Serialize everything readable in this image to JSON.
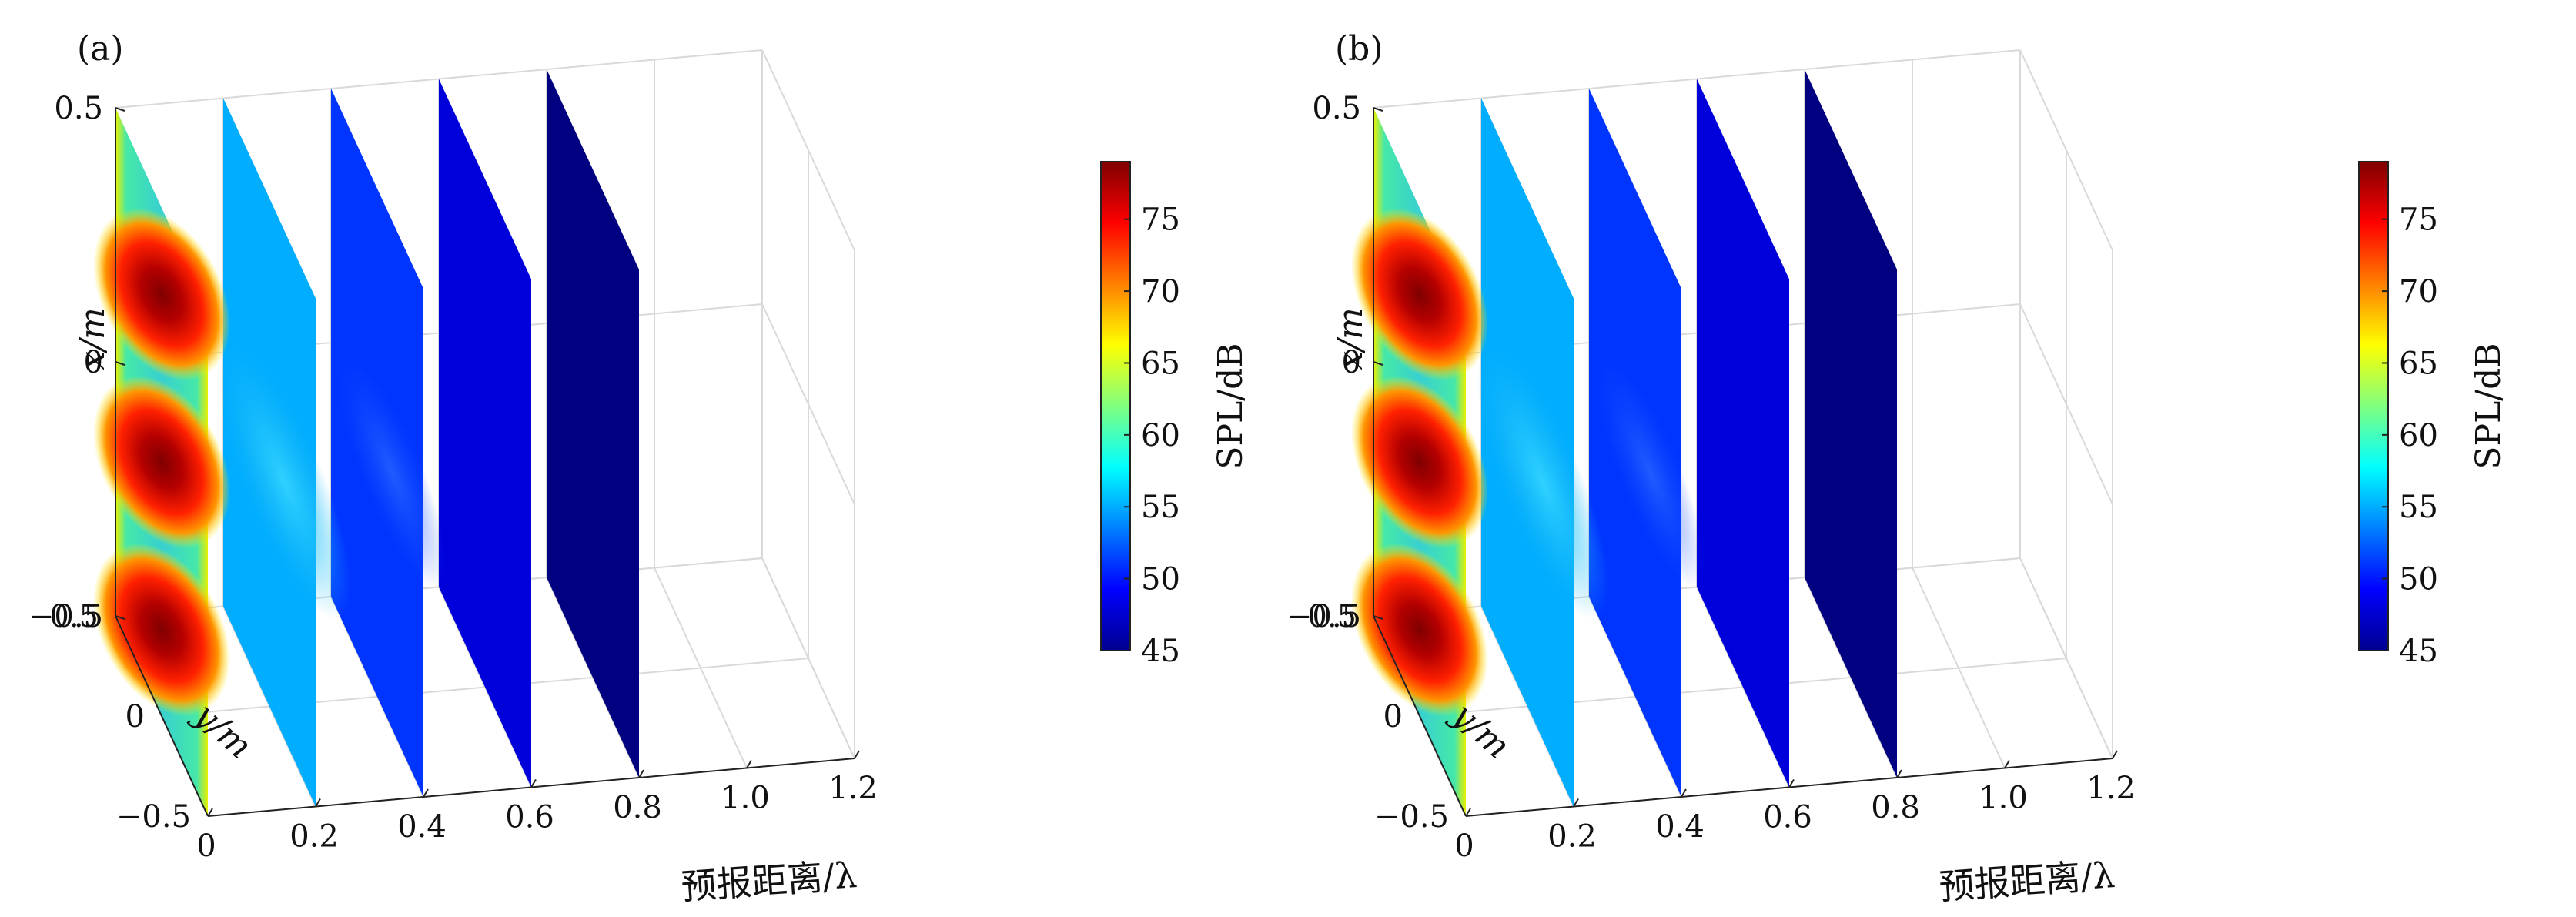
{
  "chart_data": [
    {
      "type": "3d-slice-heatmap",
      "panel_label": "(a)",
      "xlabel": "预报距离/λ",
      "ylabel": "y/m",
      "zlabel": "x/m",
      "x_ticks": [
        "0",
        "0.2",
        "0.4",
        "0.6",
        "0.8",
        "1.0",
        "1.2"
      ],
      "y_ticks": [
        "0.5",
        "0",
        "−0.5"
      ],
      "z_ticks": [
        "0.5",
        "0",
        "−0.5"
      ],
      "xlim": [
        0,
        1.2
      ],
      "ylim": [
        -0.5,
        0.5
      ],
      "zlim": [
        -0.5,
        0.5
      ],
      "slice_positions": [
        0,
        0.2,
        0.4,
        0.6,
        0.8
      ],
      "slice_mean_spl": [
        66,
        55,
        51,
        48,
        45
      ],
      "colorbar": {
        "label": "SPL/dB",
        "ticks": [
          "45",
          "50",
          "55",
          "60",
          "65",
          "70",
          "75"
        ],
        "range": [
          45,
          79
        ],
        "colormap": "jet"
      },
      "grid": true
    },
    {
      "type": "3d-slice-heatmap",
      "panel_label": "(b)",
      "xlabel": "预报距离/λ",
      "ylabel": "y/m",
      "zlabel": "x/m",
      "x_ticks": [
        "0",
        "0.2",
        "0.4",
        "0.6",
        "0.8",
        "1.0",
        "1.2"
      ],
      "y_ticks": [
        "0.5",
        "0",
        "−0.5"
      ],
      "z_ticks": [
        "0.5",
        "0",
        "−0.5"
      ],
      "xlim": [
        0,
        1.2
      ],
      "ylim": [
        -0.5,
        0.5
      ],
      "zlim": [
        -0.5,
        0.5
      ],
      "slice_positions": [
        0,
        0.2,
        0.4,
        0.6,
        0.8
      ],
      "slice_mean_spl": [
        66,
        55,
        51,
        48,
        45
      ],
      "colorbar": {
        "label": "SPL/dB",
        "ticks": [
          "45",
          "50",
          "55",
          "60",
          "65",
          "70",
          "75"
        ],
        "range": [
          45,
          79
        ],
        "colormap": "jet"
      },
      "grid": true
    }
  ]
}
